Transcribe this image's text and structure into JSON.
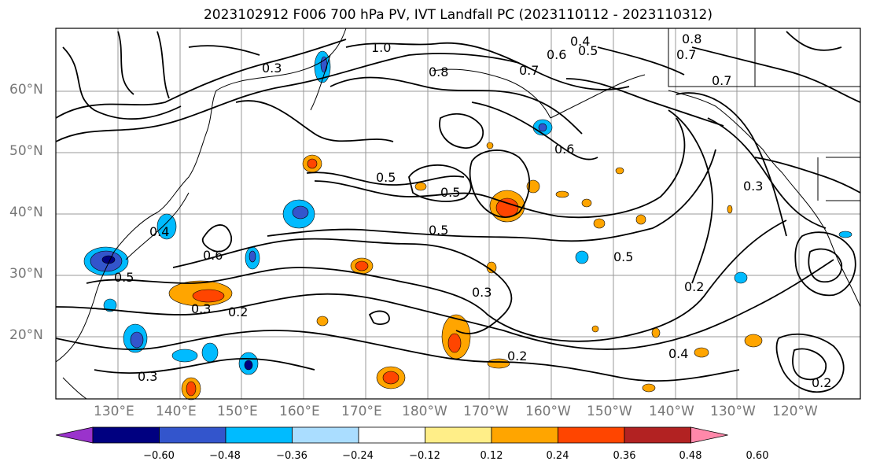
{
  "title": "2023102912 F006 700 hPa PV, IVT Landfall PC (2023110112 - 2023110312)",
  "lat_labels": [
    "60°N",
    "50°N",
    "40°N",
    "30°N",
    "20°N"
  ],
  "lon_labels": [
    "130°E",
    "140°E",
    "150°E",
    "160°E",
    "170°E",
    "180°W",
    "170°W",
    "160°W",
    "150°W",
    "140°W",
    "130°W",
    "120°W"
  ],
  "colorbar": {
    "colors": [
      "#9a33cc",
      "#000080",
      "#3355cc",
      "#00bbff",
      "#aaddff",
      "#ffffff",
      "#ffee88",
      "#ffa500",
      "#ff4500",
      "#b22222",
      "#ff88aa"
    ],
    "tick_labels": [
      "−0.60",
      "−0.48",
      "−0.36",
      "−0.24",
      "−0.12",
      "0.12",
      "0.24",
      "0.36",
      "0.48",
      "0.60"
    ]
  },
  "contour_labels": [
    "0.3",
    "0.5",
    "0.2",
    "0.5",
    "0.8",
    "1.0",
    "0.7",
    "0.4",
    "0.6",
    "0.5",
    "0.3",
    "0.2",
    "0.4",
    "0.6",
    "0.3",
    "0.2",
    "0.5",
    "0.5",
    "0.7",
    "0.6",
    "0.8",
    "0.5",
    "0.7",
    "0.4",
    "0.3",
    "0.2",
    "0.3"
  ]
}
